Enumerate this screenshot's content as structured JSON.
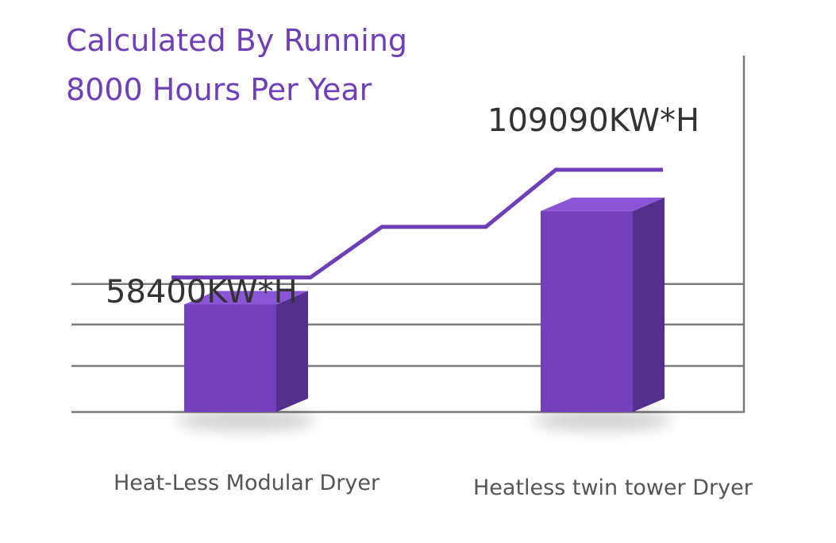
{
  "title": [
    "Calculated By Running",
    "8000 Hours Per Year"
  ],
  "colors": {
    "accent": "#6f3fba",
    "bar_front": "#7540bd",
    "bar_top": "#8a55d6",
    "bar_side": "#53308e",
    "grid": "#7a7a7a"
  },
  "chart_data": {
    "type": "bar",
    "style": "3d",
    "categories": [
      "Heat-Less Modular Dryer",
      "Heatless twin tower Dryer"
    ],
    "values": [
      58400,
      109090
    ],
    "data_labels": [
      "58400KW*H",
      "109090KW*H"
    ],
    "title": "Calculated By Running 8000 Hours Per Year",
    "xlabel": "",
    "ylabel": "",
    "ylim": [
      0,
      150000
    ],
    "grid": true,
    "legend": "none"
  }
}
